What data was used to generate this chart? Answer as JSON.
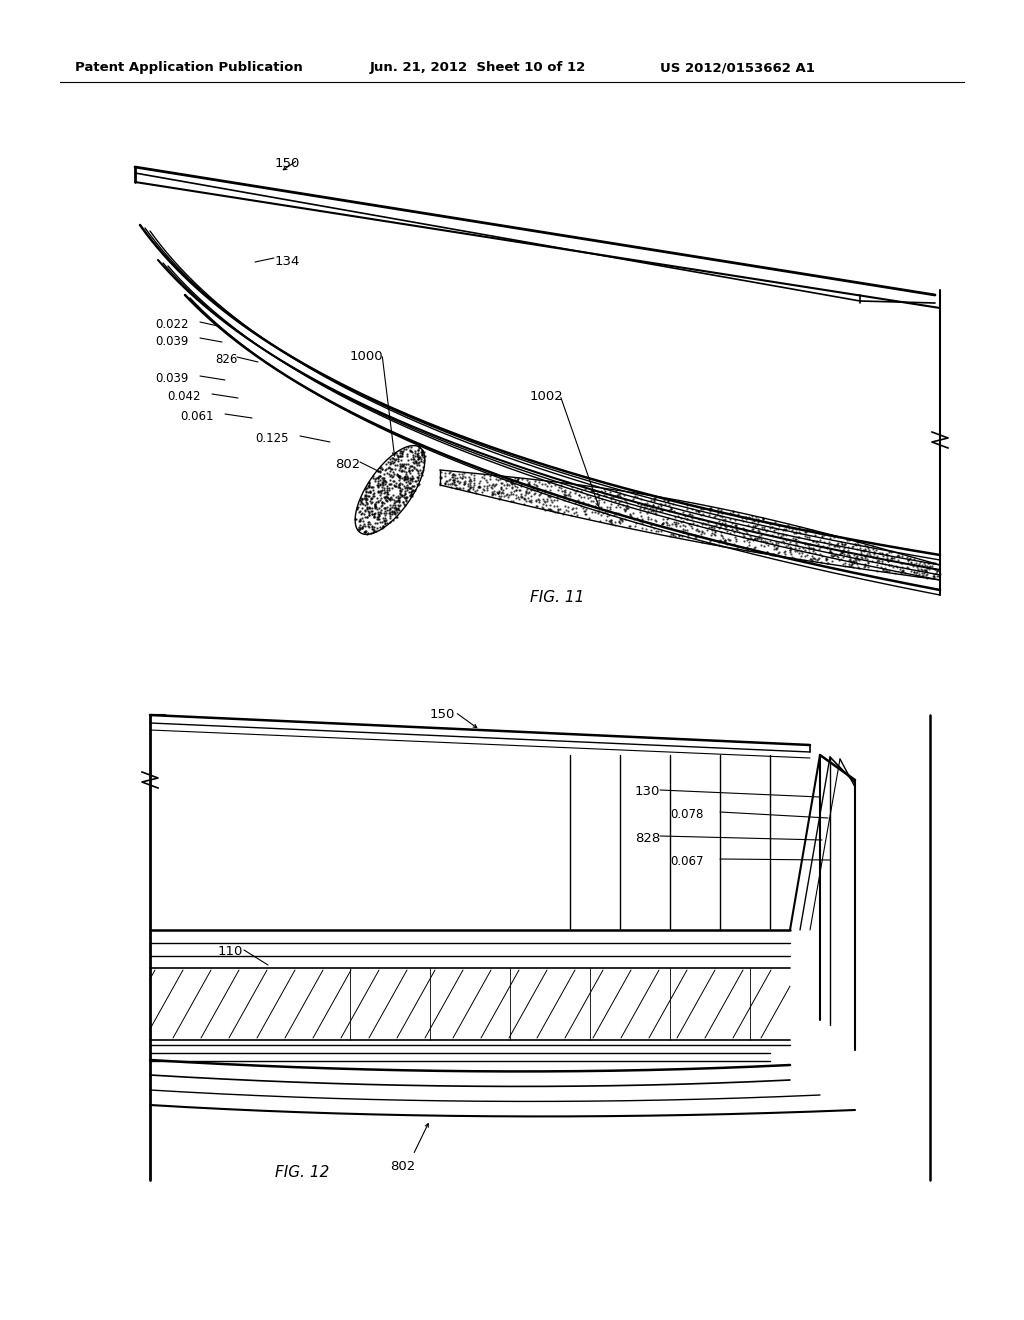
{
  "background_color": "#ffffff",
  "text_color": "#000000",
  "header1": "Patent Application Publication",
  "header2": "Jun. 21, 2012  Sheet 10 of 12",
  "header3": "US 2012/0153662 A1"
}
